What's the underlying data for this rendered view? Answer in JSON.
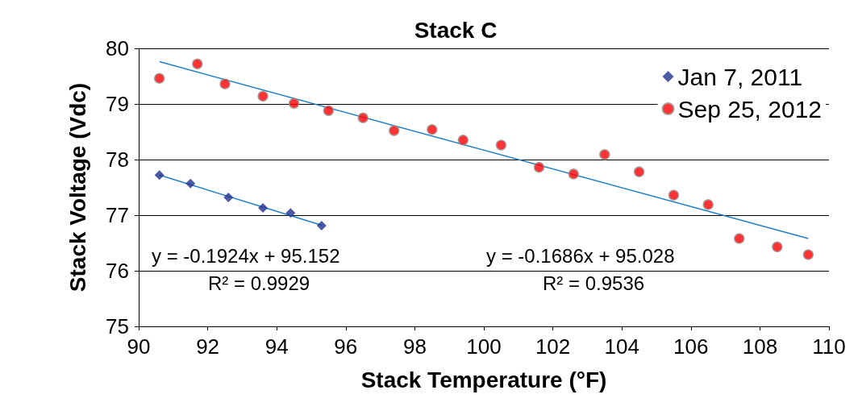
{
  "chart_data": {
    "type": "scatter",
    "title": "Stack C",
    "xlabel": "Stack Temperature (°F)",
    "ylabel": "Stack Voltage (Vdc)",
    "xlim": [
      90,
      110
    ],
    "xticks": [
      90,
      92,
      94,
      96,
      98,
      100,
      102,
      104,
      106,
      108,
      110
    ],
    "ylim": [
      75,
      80
    ],
    "yticks": [
      75,
      76,
      77,
      78,
      79,
      80
    ],
    "grid": "y",
    "legend": "top right",
    "series": [
      {
        "name": "Jan 7, 2011",
        "color": "#1f2f8f",
        "marker": "diamond",
        "x": [
          90.6,
          91.5,
          92.6,
          93.6,
          94.4,
          95.3
        ],
        "values": [
          77.72,
          77.57,
          77.32,
          77.13,
          77.04,
          76.81
        ]
      },
      {
        "name": "Sep 25, 2012",
        "color": "#ff0000",
        "marker": "circle",
        "x": [
          90.6,
          91.7,
          92.5,
          93.6,
          94.5,
          95.5,
          96.5,
          97.4,
          98.5,
          99.4,
          100.5,
          101.6,
          102.6,
          103.5,
          104.5,
          105.5,
          106.5,
          107.4,
          108.5,
          109.4
        ],
        "values": [
          79.46,
          79.72,
          79.36,
          79.14,
          79.01,
          78.88,
          78.75,
          78.52,
          78.54,
          78.35,
          78.26,
          77.86,
          77.74,
          78.09,
          77.78,
          77.36,
          77.19,
          76.58,
          76.43,
          76.29
        ]
      },
      {
        "type": "line",
        "color": "#1f7fc4",
        "marker": "none",
        "x": [
          90.6,
          95.3
        ],
        "values": [
          77.72,
          76.82
        ]
      },
      {
        "type": "line",
        "color": "#1f7fc4",
        "marker": "none",
        "x": [
          90.6,
          109.4
        ],
        "values": [
          79.76,
          76.58
        ]
      }
    ],
    "annotations": [
      "y = -0.1924x + 95.152",
      "R² = 0.9929",
      "y = -0.1686x + 95.028",
      "R² = 0.9536"
    ]
  }
}
